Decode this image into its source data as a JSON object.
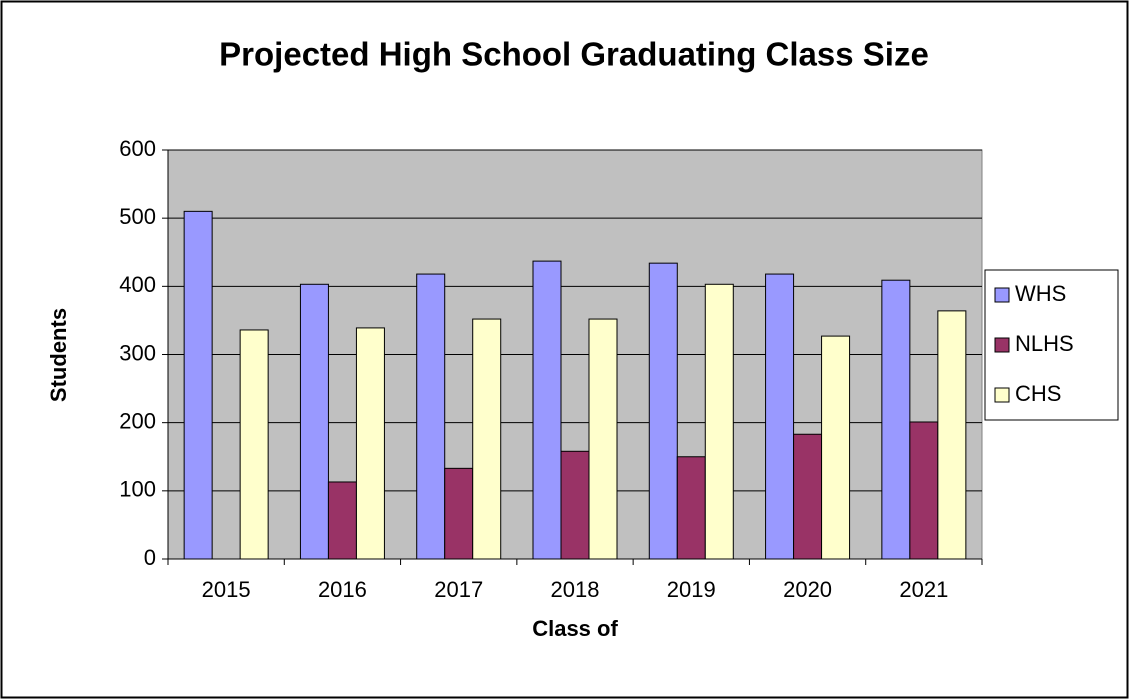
{
  "chart_data": {
    "type": "bar",
    "title": "Projected High School Graduating Class Size",
    "x_label": "Class of",
    "y_label": "Students",
    "categories": [
      "2015",
      "2016",
      "2017",
      "2018",
      "2019",
      "2020",
      "2021"
    ],
    "series": [
      {
        "name": "WHS",
        "color": "#9999ff",
        "values": [
          510,
          403,
          418,
          437,
          434,
          418,
          409
        ]
      },
      {
        "name": "NLHS",
        "color": "#993366",
        "values": [
          null,
          113,
          133,
          158,
          150,
          183,
          201
        ]
      },
      {
        "name": "CHS",
        "color": "#ffffcc",
        "values": [
          336,
          339,
          352,
          352,
          403,
          327,
          364
        ]
      }
    ],
    "ylim": [
      0,
      600
    ],
    "yticks": [
      0,
      100,
      200,
      300,
      400,
      500,
      600
    ],
    "grid": true,
    "legend": "right"
  }
}
